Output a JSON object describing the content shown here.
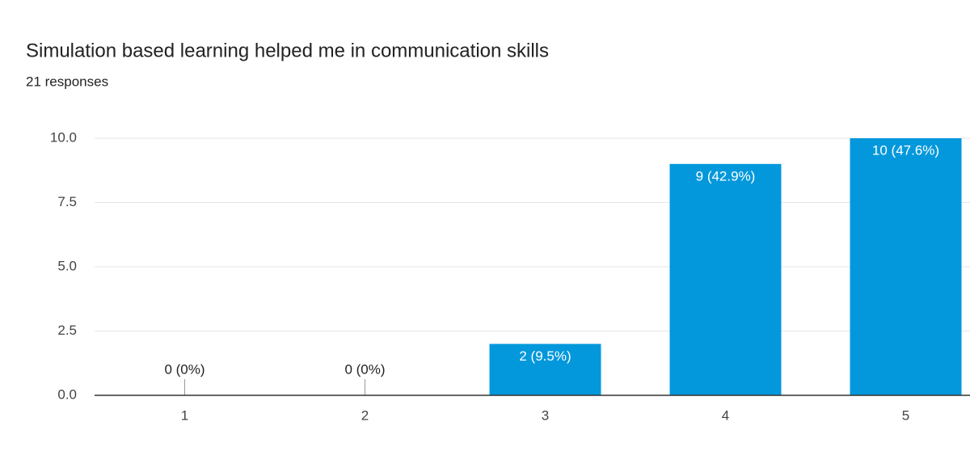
{
  "chart_data": {
    "type": "bar",
    "title": "Simulation based learning helped me in communication skills",
    "subtitle": "21 responses",
    "categories": [
      "1",
      "2",
      "3",
      "4",
      "5"
    ],
    "values": [
      0,
      0,
      2,
      9,
      10
    ],
    "value_labels": [
      "0 (0%)",
      "0 (0%)",
      "2 (9.5%)",
      "9 (42.9%)",
      "10 (47.6%)"
    ],
    "color": "#0398dc",
    "ylim": [
      0,
      10
    ],
    "yticks": [
      {
        "value": 0,
        "label": "0.0"
      },
      {
        "value": 2.5,
        "label": "2.5"
      },
      {
        "value": 5,
        "label": "5.0"
      },
      {
        "value": 7.5,
        "label": "7.5"
      },
      {
        "value": 10,
        "label": "10.0"
      }
    ],
    "grid": true
  }
}
